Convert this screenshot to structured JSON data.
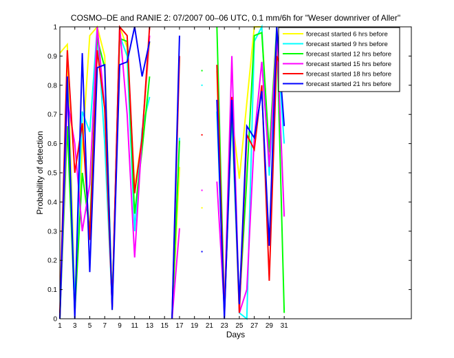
{
  "chart_data": {
    "type": "line",
    "title": "COSMO–DE and RANIE 2: 07/2007 00–06 UTC, 0.1 mm/6h for \"Weser downriver of Aller\"",
    "xlabel": "Days",
    "ylabel": "Probability of detection",
    "xlim": [
      1,
      48
    ],
    "ylim": [
      0,
      1
    ],
    "x_ticks": [
      1,
      3,
      5,
      7,
      9,
      11,
      13,
      15,
      17,
      19,
      21,
      23,
      25,
      27,
      29,
      31
    ],
    "y_ticks": [
      0,
      0.1,
      0.2,
      0.3,
      0.4,
      0.5,
      0.6,
      0.7,
      0.8,
      0.9,
      1
    ],
    "y_tick_labels": [
      "0",
      "0.1",
      "0.2",
      "0.3",
      "0.4",
      "0.5",
      "0.6",
      "0.7",
      "0.8",
      "0.9",
      "1"
    ],
    "grid": false,
    "legend_position": "top-right",
    "series": [
      {
        "name": "forecast started 6 hrs before",
        "color": "#ffff00",
        "values": [
          0.91,
          0.94,
          0.07,
          0.58,
          0.97,
          1.0,
          0.9,
          0.03,
          1.0,
          0.93,
          0.45,
          0.62,
          0.95,
          null,
          null,
          0.0,
          0.52,
          null,
          null,
          0.38,
          null,
          0.85,
          0.02,
          0.7,
          0.48,
          0.74,
          1.0,
          1.0,
          0.55,
          0.93,
          0.91
        ]
      },
      {
        "name": "forecast started 9 hrs before",
        "color": "#00ffff",
        "values": [
          0.0,
          0.82,
          0.05,
          0.71,
          0.64,
          1.0,
          0.6,
          0.05,
          0.97,
          0.9,
          0.3,
          0.65,
          0.76,
          null,
          null,
          0.0,
          0.62,
          null,
          null,
          0.8,
          null,
          0.71,
          0.02,
          0.7,
          0.02,
          0.0,
          0.95,
          1.0,
          0.49,
          0.97,
          0.6
        ]
      },
      {
        "name": "forecast started 12 hrs before",
        "color": "#00ff00",
        "values": [
          0.0,
          0.66,
          0.02,
          0.5,
          0.3,
          0.96,
          0.86,
          0.05,
          0.96,
          0.95,
          0.36,
          0.58,
          0.83,
          null,
          null,
          0.0,
          0.61,
          null,
          null,
          0.85,
          null,
          1.0,
          0.03,
          0.72,
          0.05,
          0.48,
          0.97,
          0.98,
          0.57,
          1.0,
          0.02
        ]
      },
      {
        "name": "forecast started 15 hrs before",
        "color": "#ff00ff",
        "values": [
          0.0,
          0.75,
          0.6,
          0.3,
          0.46,
          1.0,
          0.72,
          0.04,
          1.0,
          0.7,
          0.21,
          0.63,
          0.97,
          null,
          null,
          0.0,
          0.31,
          null,
          null,
          0.44,
          null,
          0.47,
          0.03,
          0.9,
          0.02,
          0.1,
          0.62,
          0.88,
          0.52,
          0.98,
          0.35
        ]
      },
      {
        "name": "forecast started 18 hrs before",
        "color": "#ff0000",
        "values": [
          0.02,
          0.92,
          0.5,
          0.67,
          0.27,
          0.92,
          0.72,
          0.04,
          1.0,
          0.97,
          0.43,
          0.62,
          1.0,
          null,
          null,
          0.0,
          0.9,
          null,
          null,
          0.63,
          null,
          0.87,
          0.01,
          0.76,
          0.02,
          0.63,
          0.58,
          0.8,
          0.13,
          0.9,
          0.83
        ]
      },
      {
        "name": "forecast started 21 hrs before",
        "color": "#0000ff",
        "values": [
          0.0,
          0.83,
          0.0,
          0.91,
          0.16,
          0.86,
          0.87,
          0.03,
          0.87,
          0.88,
          1.0,
          0.83,
          0.95,
          null,
          null,
          0.0,
          0.97,
          null,
          null,
          0.23,
          null,
          0.75,
          0.0,
          0.75,
          0.05,
          0.66,
          0.62,
          0.78,
          0.25,
          1.0,
          0.66
        ]
      }
    ]
  }
}
